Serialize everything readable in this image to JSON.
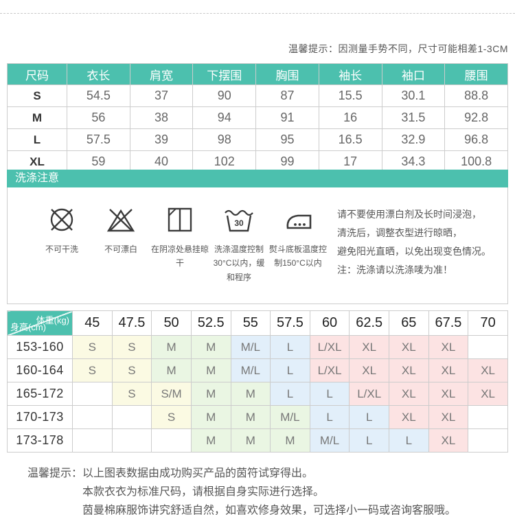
{
  "top": {
    "tip": "温馨提示：因测量手势不同，尺寸可能相差1-3CM"
  },
  "size_table": {
    "headers": [
      "尺码",
      "衣长",
      "肩宽",
      "下摆围",
      "胸围",
      "袖长",
      "袖口",
      "腰围"
    ],
    "rows": [
      {
        "label": "S",
        "values": [
          "54.5",
          "37",
          "90",
          "87",
          "15.5",
          "30.1",
          "88.8"
        ]
      },
      {
        "label": "M",
        "values": [
          "56",
          "38",
          "94",
          "91",
          "16",
          "31.5",
          "92.8"
        ]
      },
      {
        "label": "L",
        "values": [
          "57.5",
          "39",
          "98",
          "95",
          "16.5",
          "32.9",
          "96.8"
        ]
      },
      {
        "label": "XL",
        "values": [
          "59",
          "40",
          "102",
          "99",
          "17",
          "34.3",
          "100.8"
        ]
      }
    ]
  },
  "wash_section": {
    "title": "洗涤注意",
    "icons": [
      {
        "icon": "no-dry-clean-icon",
        "label": "不可干洗"
      },
      {
        "icon": "no-bleach-icon",
        "label": "不可漂白"
      },
      {
        "icon": "shade-hang-dry-icon",
        "label": "在阴凉处悬挂晾干"
      },
      {
        "icon": "wash-30c-icon",
        "label": "洗涤温度控制30°C以内，缓和程序"
      },
      {
        "icon": "iron-150c-icon",
        "label": "熨斗底板温度控制150°C以内"
      }
    ],
    "note_lines": [
      "请不要使用漂白剂及长时间浸泡，",
      "清洗后，调整衣型进行晾晒，",
      "避免阳光直晒，以免出现变色情况。",
      "注：洗涤请以洗涤唛为准！"
    ]
  },
  "fit_matrix": {
    "corner": {
      "top_right": "体重(kg)",
      "bottom_left": "身高(cm)"
    },
    "weights": [
      "45",
      "47.5",
      "50",
      "52.5",
      "55",
      "57.5",
      "60",
      "62.5",
      "65",
      "67.5",
      "70"
    ],
    "rows": [
      {
        "height": "153-160",
        "cells": [
          {
            "t": "S",
            "c": "y"
          },
          {
            "t": "S",
            "c": "y"
          },
          {
            "t": "M",
            "c": "g"
          },
          {
            "t": "M",
            "c": "g"
          },
          {
            "t": "M/L",
            "c": "b"
          },
          {
            "t": "L",
            "c": "b"
          },
          {
            "t": "L/XL",
            "c": "p"
          },
          {
            "t": "XL",
            "c": "p"
          },
          {
            "t": "XL",
            "c": "p"
          },
          {
            "t": "XL",
            "c": "p"
          },
          {
            "t": "",
            "c": "w"
          }
        ]
      },
      {
        "height": "160-164",
        "cells": [
          {
            "t": "S",
            "c": "y"
          },
          {
            "t": "S",
            "c": "y"
          },
          {
            "t": "M",
            "c": "g"
          },
          {
            "t": "M",
            "c": "g"
          },
          {
            "t": "M/L",
            "c": "b"
          },
          {
            "t": "L",
            "c": "b"
          },
          {
            "t": "L/XL",
            "c": "p"
          },
          {
            "t": "XL",
            "c": "p"
          },
          {
            "t": "XL",
            "c": "p"
          },
          {
            "t": "XL",
            "c": "p"
          },
          {
            "t": "XL",
            "c": "p"
          }
        ]
      },
      {
        "height": "165-172",
        "cells": [
          {
            "t": "",
            "c": "w"
          },
          {
            "t": "S",
            "c": "y"
          },
          {
            "t": "S/M",
            "c": "y"
          },
          {
            "t": "M",
            "c": "g"
          },
          {
            "t": "M",
            "c": "g"
          },
          {
            "t": "L",
            "c": "b"
          },
          {
            "t": "L",
            "c": "b"
          },
          {
            "t": "L/XL",
            "c": "p"
          },
          {
            "t": "XL",
            "c": "p"
          },
          {
            "t": "XL",
            "c": "p"
          },
          {
            "t": "XL",
            "c": "p"
          }
        ]
      },
      {
        "height": "170-173",
        "cells": [
          {
            "t": "",
            "c": "w"
          },
          {
            "t": "",
            "c": "w"
          },
          {
            "t": "S",
            "c": "y"
          },
          {
            "t": "M",
            "c": "g"
          },
          {
            "t": "M",
            "c": "g"
          },
          {
            "t": "M/L",
            "c": "g"
          },
          {
            "t": "L",
            "c": "b"
          },
          {
            "t": "L",
            "c": "b"
          },
          {
            "t": "XL",
            "c": "p"
          },
          {
            "t": "XL",
            "c": "p"
          },
          {
            "t": "",
            "c": "w"
          }
        ]
      },
      {
        "height": "173-178",
        "cells": [
          {
            "t": "",
            "c": "w"
          },
          {
            "t": "",
            "c": "w"
          },
          {
            "t": "",
            "c": "w"
          },
          {
            "t": "M",
            "c": "g"
          },
          {
            "t": "M",
            "c": "g"
          },
          {
            "t": "M",
            "c": "g"
          },
          {
            "t": "M/L",
            "c": "b"
          },
          {
            "t": "L",
            "c": "b"
          },
          {
            "t": "L",
            "c": "b"
          },
          {
            "t": "XL",
            "c": "p"
          },
          {
            "t": "",
            "c": "w"
          }
        ]
      }
    ]
  },
  "bottom": {
    "label": "温馨提示：",
    "lines": [
      "以上图表数据由成功购买产品的茵符试穿得出。",
      "本款衣衣为标准尺码，请根据自身实际进行选择。",
      "茵曼棉麻服饰讲究舒适自然，如喜欢修身效果，可选择小一码或咨询客服哦。"
    ]
  },
  "colors": {
    "teal": "#4cc0ae",
    "cell_yellow": "#fbfae3",
    "cell_green": "#eaf6e3",
    "cell_blue": "#e2effa",
    "cell_pink": "#fce3e3",
    "border": "#cccccc",
    "text_dark": "#333333",
    "text_gray": "#666666"
  }
}
